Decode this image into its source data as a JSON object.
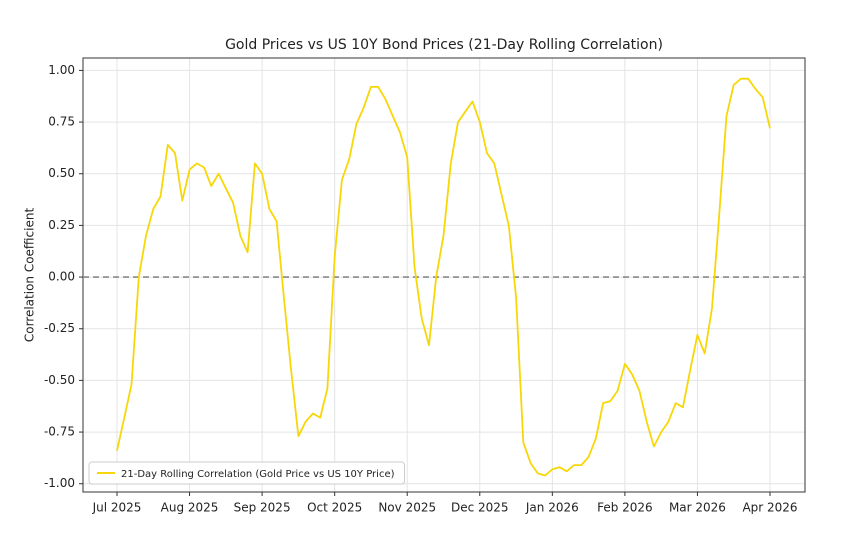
{
  "chart_data": {
    "type": "line",
    "title": "Gold Prices vs US 10Y Bond Prices (21-Day Rolling Correlation)",
    "y_label": "Correlation Coefficient",
    "categories": [
      "Jul 2025",
      null,
      null,
      null,
      null,
      null,
      null,
      null,
      null,
      null,
      "Aug 2025",
      null,
      null,
      null,
      null,
      null,
      null,
      null,
      null,
      null,
      "Sep 2025",
      null,
      null,
      null,
      null,
      null,
      null,
      null,
      null,
      null,
      "Oct 2025",
      null,
      null,
      null,
      null,
      null,
      null,
      null,
      null,
      null,
      "Nov 2025",
      null,
      null,
      null,
      null,
      null,
      null,
      null,
      null,
      null,
      "Dec 2025",
      null,
      null,
      null,
      null,
      null,
      null,
      null,
      null,
      null,
      "Jan 2026",
      null,
      null,
      null,
      null,
      null,
      null,
      null,
      null,
      null,
      "Feb 2026",
      null,
      null,
      null,
      null,
      null,
      null,
      null,
      null,
      null,
      "Mar 2026",
      null,
      null,
      null,
      null,
      null,
      null,
      null,
      null,
      null,
      "Apr 2026"
    ],
    "series": [
      {
        "name": "21-Day Rolling Correlation (Gold Price vs US 10Y Price)",
        "color": "#f7d708",
        "values": [
          -0.84,
          -0.68,
          -0.52,
          0.0,
          0.2,
          0.33,
          0.39,
          0.64,
          0.6,
          0.37,
          0.52,
          0.55,
          0.53,
          0.44,
          0.5,
          0.43,
          0.36,
          0.2,
          0.12,
          0.55,
          0.5,
          0.33,
          0.27,
          -0.1,
          -0.45,
          -0.77,
          -0.7,
          -0.66,
          -0.68,
          -0.54,
          0.1,
          0.47,
          0.57,
          0.74,
          0.82,
          0.92,
          0.92,
          0.86,
          0.78,
          0.7,
          0.58,
          0.05,
          -0.2,
          -0.33,
          0.0,
          0.2,
          0.55,
          0.75,
          0.8,
          0.85,
          0.75,
          0.6,
          0.55,
          0.4,
          0.25,
          -0.1,
          -0.8,
          -0.9,
          -0.95,
          -0.96,
          -0.93,
          -0.92,
          -0.94,
          -0.91,
          -0.91,
          -0.87,
          -0.78,
          -0.61,
          -0.6,
          -0.55,
          -0.42,
          -0.47,
          -0.55,
          -0.7,
          -0.82,
          -0.75,
          -0.7,
          -0.61,
          -0.63,
          -0.45,
          -0.28,
          -0.37,
          -0.15,
          0.3,
          0.78,
          0.93,
          0.96,
          0.96,
          0.91,
          0.87,
          0.72
        ]
      }
    ],
    "ylim": [
      -1.04,
      1.06
    ],
    "yticks": [
      {
        "value": -1,
        "label": "-1.00"
      },
      {
        "value": -0.75,
        "label": "-0.75"
      },
      {
        "value": -0.5,
        "label": "-0.50"
      },
      {
        "value": -0.25,
        "label": "-0.25"
      },
      {
        "value": 0,
        "label": "0.00"
      },
      {
        "value": 0.25,
        "label": "0.25"
      },
      {
        "value": 0.5,
        "label": "0.50"
      },
      {
        "value": 0.75,
        "label": "0.75"
      },
      {
        "value": 1,
        "label": "1.00"
      }
    ],
    "reference_line": 0,
    "grid": true,
    "legend": "lower-left"
  }
}
